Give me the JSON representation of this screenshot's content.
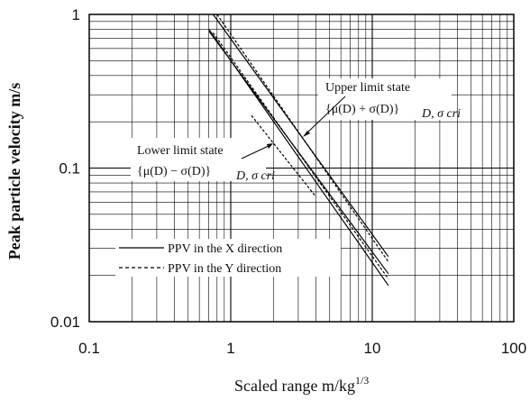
{
  "chart_data": {
    "type": "line",
    "x_scale": "log",
    "y_scale": "log",
    "xlim": [
      0.1,
      100
    ],
    "ylim": [
      0.01,
      1
    ],
    "grid": true,
    "xlabel": "Scaled range m/kg",
    "xlabel_superscript": "1/3",
    "ylabel": "Peak particle velocity m/s",
    "x_ticks": [
      "0.1",
      "1",
      "10",
      "100"
    ],
    "y_ticks": [
      "0.01",
      "0.1",
      "1"
    ],
    "legend_position": "bottom-left",
    "legend": [
      {
        "label": "PPV in the X direction",
        "style": "solid"
      },
      {
        "label": "PPV in the Y direction",
        "style": "dashed"
      }
    ],
    "annotations": [
      {
        "title": "Upper limit state",
        "formula": "{μ(D) + σ(D)}",
        "subscript": "D, σ cri"
      },
      {
        "title": "Lower limit state",
        "formula": "{μ(D) − σ(D)}",
        "subscript": "D, σ cri"
      }
    ],
    "series": [
      {
        "style": "solid",
        "x": [
          0.75,
          13.0
        ],
        "y": [
          1.0,
          0.0265
        ]
      },
      {
        "style": "solid",
        "x": [
          0.7,
          13.0
        ],
        "y": [
          0.78,
          0.0205
        ]
      },
      {
        "style": "solid",
        "x": [
          0.7,
          13.0
        ],
        "y": [
          0.8,
          0.0172
        ]
      },
      {
        "style": "dashed",
        "x": [
          0.8,
          13.0
        ],
        "y": [
          1.0,
          0.0245
        ]
      },
      {
        "style": "dashed",
        "x": [
          0.75,
          13.0
        ],
        "y": [
          0.76,
          0.019
        ]
      },
      {
        "style": "dashed",
        "x": [
          1.4,
          4.0
        ],
        "y": [
          0.22,
          0.065
        ]
      }
    ]
  }
}
